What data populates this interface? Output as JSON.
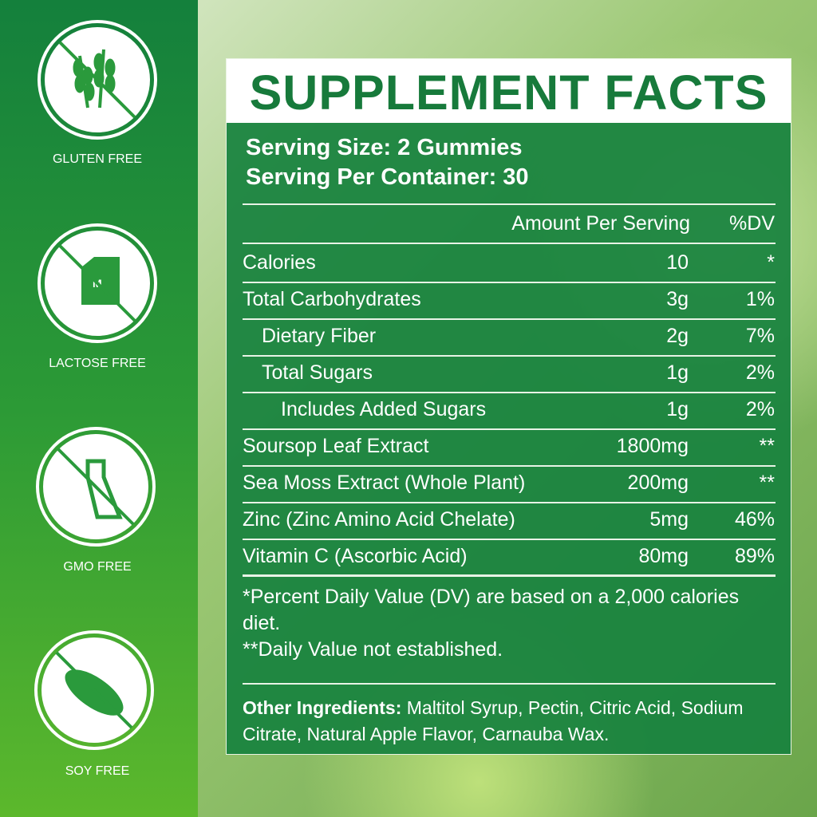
{
  "badges": [
    {
      "label": "GLUTEN FREE"
    },
    {
      "label": "LACTOSE FREE"
    },
    {
      "label": "GMO FREE"
    },
    {
      "label": "SOY FREE"
    }
  ],
  "panel": {
    "title": "SUPPLEMENT FACTS",
    "serving_size": "Serving Size: 2 Gummies",
    "servings_per_container": "Serving Per Container: 30",
    "header": {
      "amount": "Amount Per Serving",
      "dv": "%DV"
    },
    "rows": [
      {
        "name": "Calories",
        "amount": "10",
        "dv": "*"
      },
      {
        "name": "Total Carbohydrates",
        "amount": "3g",
        "dv": "1%",
        "children": [
          {
            "name": "Dietary Fiber",
            "amount": "2g",
            "dv": "7%"
          },
          {
            "name": "Total Sugars",
            "amount": "1g",
            "dv": "2%",
            "children": [
              {
                "name": "Includes Added Sugars",
                "amount": "1g",
                "dv": "2%"
              }
            ]
          }
        ]
      },
      {
        "name": "Soursop Leaf Extract",
        "amount": "1800mg",
        "dv": "**"
      },
      {
        "name": "Sea Moss Extract (Whole Plant)",
        "amount": "200mg",
        "dv": "**"
      },
      {
        "name": "Zinc (Zinc Amino Acid Chelate)",
        "amount": "5mg",
        "dv": "46%"
      },
      {
        "name": "Vitamin C (Ascorbic Acid)",
        "amount": "80mg",
        "dv": "89%"
      }
    ],
    "footnotes": [
      "*Percent Daily Value (DV) are based on a 2,000 calories diet.",
      "**Daily Value not established."
    ],
    "other_ingredients": {
      "label": "Other Ingredients:",
      "text": "Maltitol Syrup, Pectin, Citric Acid, Sodium Citrate, Natural Apple Flavor, Carnauba Wax."
    }
  }
}
